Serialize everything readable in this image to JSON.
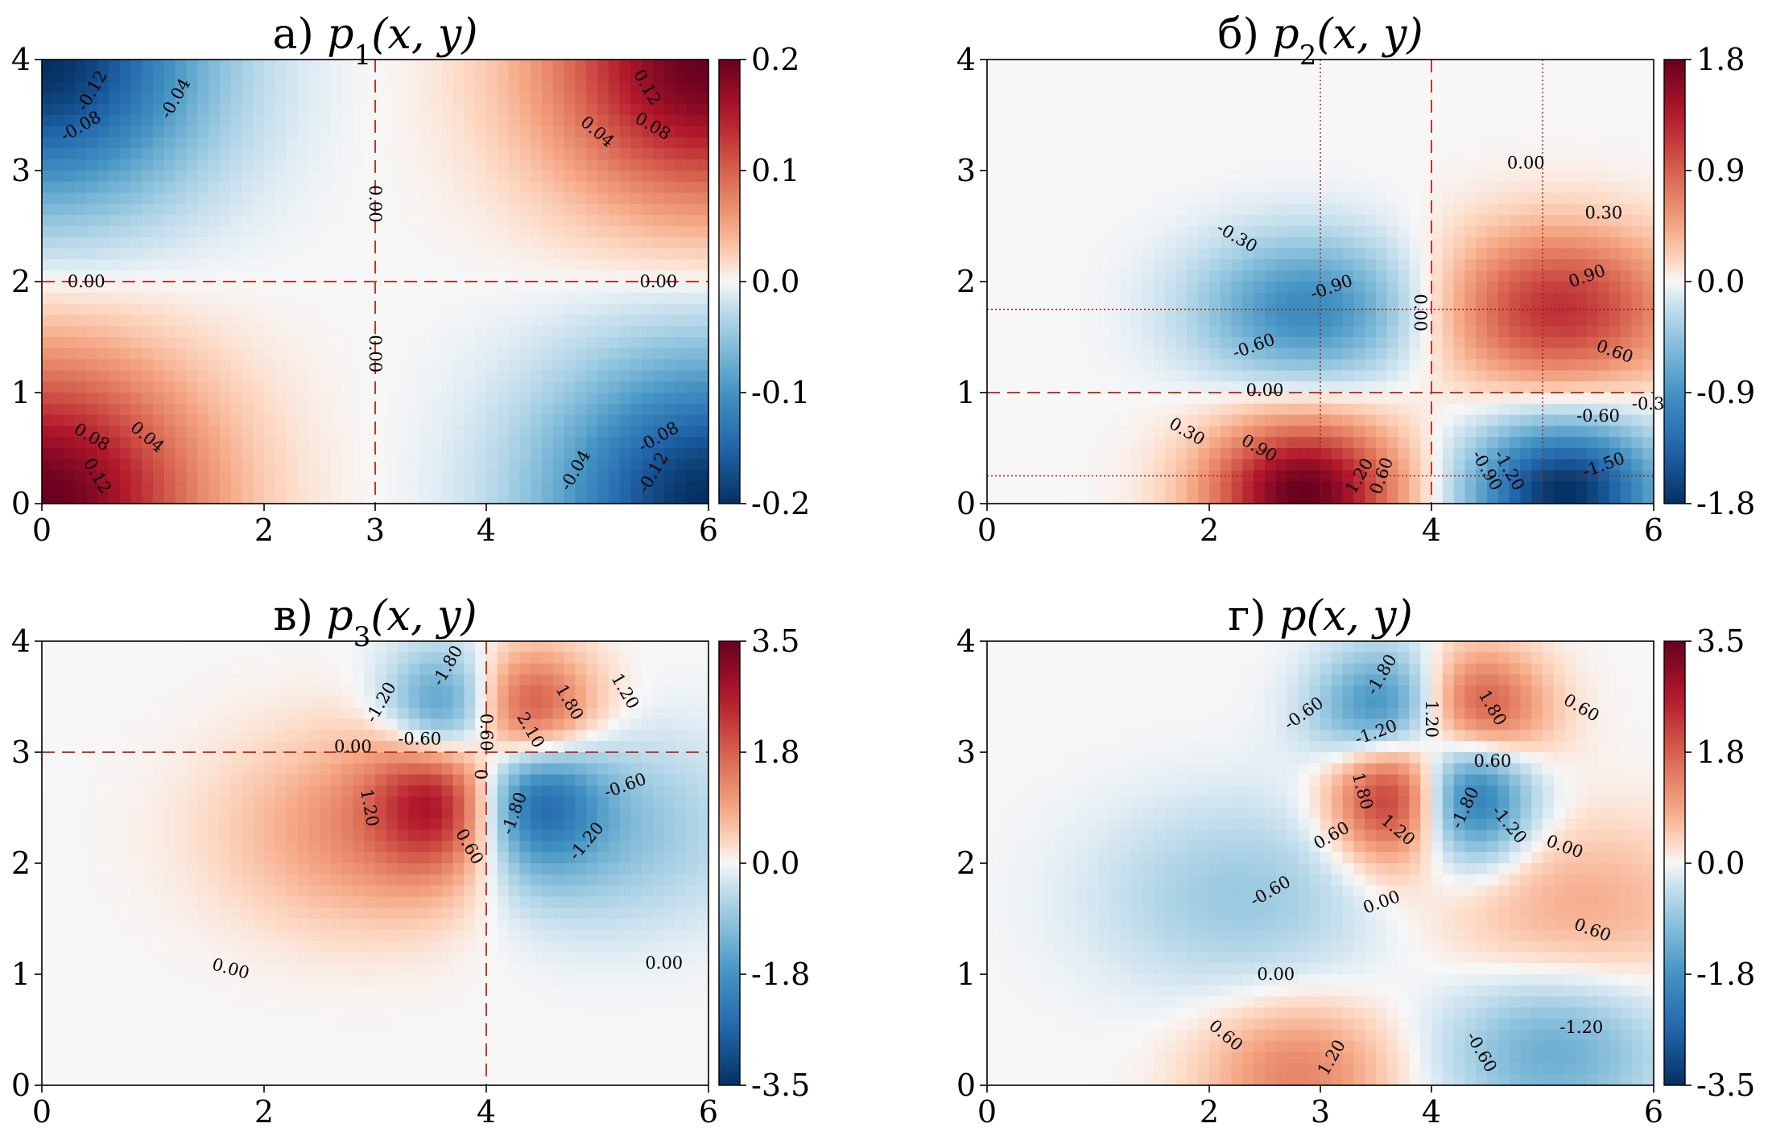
{
  "chart_data": [
    {
      "type": "heatmap",
      "panel_letter": "а)",
      "title": "p1(x, y)",
      "title_sym": "p",
      "title_sub": "1",
      "title_args": "(x, y)",
      "xlim": [
        0,
        6
      ],
      "ylim": [
        0,
        4
      ],
      "xticks": [
        0,
        2,
        3,
        4,
        6
      ],
      "yticks": [
        0,
        1,
        2,
        3,
        4
      ],
      "colorbar": {
        "min": -0.2,
        "max": 0.2,
        "ticks": [
          "-0.2",
          "-0.1",
          "0.0",
          "0.1",
          "0.2"
        ]
      },
      "colormap": "RdBu_r",
      "amp": 0.2,
      "blobs": [
        {
          "x": 0.0,
          "y": 0.0,
          "amp": 0.2,
          "sx": 1.0,
          "sy": 0.9
        },
        {
          "x": 6.0,
          "y": 4.0,
          "amp": 0.2,
          "sx": 1.0,
          "sy": 0.9
        },
        {
          "x": 0.0,
          "y": 4.0,
          "amp": -0.2,
          "sx": 1.0,
          "sy": 0.9
        },
        {
          "x": 6.0,
          "y": 0.0,
          "amp": -0.2,
          "sx": 1.0,
          "sy": 0.9
        }
      ],
      "dashed_lines": [
        {
          "orient": "v",
          "value": 3
        },
        {
          "orient": "h",
          "value": 2
        }
      ],
      "dotted_lines": [],
      "contour_labels": [
        {
          "text": "-0.12",
          "x": 0.45,
          "y": 3.72,
          "rot": -60
        },
        {
          "text": "-0.08",
          "x": 0.35,
          "y": 3.4,
          "rot": -30
        },
        {
          "text": "-0.04",
          "x": 1.2,
          "y": 3.65,
          "rot": -60
        },
        {
          "text": "0.12",
          "x": 5.45,
          "y": 3.75,
          "rot": 60
        },
        {
          "text": "0.08",
          "x": 5.5,
          "y": 3.4,
          "rot": 30
        },
        {
          "text": "0.04",
          "x": 5.0,
          "y": 3.35,
          "rot": 40
        },
        {
          "text": "0.08",
          "x": 0.45,
          "y": 0.6,
          "rot": 30
        },
        {
          "text": "0.12",
          "x": 0.5,
          "y": 0.25,
          "rot": 60
        },
        {
          "text": "0.04",
          "x": 0.95,
          "y": 0.6,
          "rot": 40
        },
        {
          "text": "-0.08",
          "x": 5.55,
          "y": 0.6,
          "rot": -30
        },
        {
          "text": "-0.12",
          "x": 5.5,
          "y": 0.28,
          "rot": -60
        },
        {
          "text": "-0.04",
          "x": 4.8,
          "y": 0.3,
          "rot": -60
        },
        {
          "text": "0.00",
          "x": 0.4,
          "y": 2.0,
          "rot": 0
        },
        {
          "text": "0.00",
          "x": 5.55,
          "y": 2.0,
          "rot": 0
        },
        {
          "text": "0.00",
          "x": 3.0,
          "y": 2.7,
          "rot": 90
        },
        {
          "text": "0.00",
          "x": 3.0,
          "y": 1.35,
          "rot": 90
        }
      ]
    },
    {
      "type": "heatmap",
      "panel_letter": "б)",
      "title": "p2(x, y)",
      "title_sym": "p",
      "title_sub": "2",
      "title_args": "(x, y)",
      "xlim": [
        0,
        6
      ],
      "ylim": [
        0,
        4
      ],
      "xticks": [
        0,
        2,
        4,
        6
      ],
      "yticks": [
        0,
        1,
        2,
        3,
        4
      ],
      "colorbar": {
        "min": -1.8,
        "max": 1.8,
        "ticks": [
          "-1.8",
          "-0.9",
          "0.0",
          "0.9",
          "1.8"
        ]
      },
      "colormap": "RdBu_r",
      "amp": 1.8,
      "blobs": [
        {
          "x": 2.9,
          "y": 1.75,
          "amp": -1.0,
          "sx": 0.7,
          "sy": 0.45
        },
        {
          "x": 5.15,
          "y": 1.75,
          "amp": 1.2,
          "sx": 0.75,
          "sy": 0.5
        },
        {
          "x": 2.85,
          "y": 0.1,
          "amp": 1.8,
          "sx": 0.6,
          "sy": 0.45
        },
        {
          "x": 5.2,
          "y": 0.1,
          "amp": -1.8,
          "sx": 0.6,
          "sy": 0.45
        }
      ],
      "dashed_lines": [
        {
          "orient": "v",
          "value": 4
        },
        {
          "orient": "h",
          "value": 1
        }
      ],
      "dotted_lines": [
        {
          "orient": "v",
          "value": 3
        },
        {
          "orient": "v",
          "value": 5
        },
        {
          "orient": "h",
          "value": 1.75
        },
        {
          "orient": "h",
          "value": 0.25
        }
      ],
      "contour_labels": [
        {
          "text": "0.00",
          "x": 4.85,
          "y": 3.07,
          "rot": 0
        },
        {
          "text": "0.30",
          "x": 5.55,
          "y": 2.62,
          "rot": 0
        },
        {
          "text": "-0.30",
          "x": 2.25,
          "y": 2.4,
          "rot": 30
        },
        {
          "text": "-0.90",
          "x": 3.1,
          "y": 1.95,
          "rot": -20
        },
        {
          "text": "-0.60",
          "x": 2.4,
          "y": 1.42,
          "rot": -20
        },
        {
          "text": "0.90",
          "x": 5.4,
          "y": 2.05,
          "rot": -20
        },
        {
          "text": "0.60",
          "x": 5.65,
          "y": 1.37,
          "rot": 20
        },
        {
          "text": "0.00",
          "x": 3.9,
          "y": 1.72,
          "rot": 90
        },
        {
          "text": "0.00",
          "x": 2.5,
          "y": 1.02,
          "rot": 0
        },
        {
          "text": "0.30",
          "x": 1.8,
          "y": 0.65,
          "rot": 30
        },
        {
          "text": "0.90",
          "x": 2.45,
          "y": 0.5,
          "rot": 30
        },
        {
          "text": "1.20",
          "x": 3.35,
          "y": 0.25,
          "rot": -60
        },
        {
          "text": "0.60",
          "x": 3.55,
          "y": 0.25,
          "rot": -70
        },
        {
          "text": "-0.60",
          "x": 5.5,
          "y": 0.79,
          "rot": 0
        },
        {
          "text": "-0.90",
          "x": 4.5,
          "y": 0.3,
          "rot": 60
        },
        {
          "text": "-1.20",
          "x": 4.7,
          "y": 0.3,
          "rot": 60
        },
        {
          "text": "-1.50",
          "x": 5.55,
          "y": 0.35,
          "rot": -20
        },
        {
          "text": "-0.3",
          "x": 5.95,
          "y": 0.9,
          "rot": 0
        }
      ]
    },
    {
      "type": "heatmap",
      "panel_letter": "в)",
      "title": "p3(x, y)",
      "title_sym": "p",
      "title_sub": "3",
      "title_args": "(x, y)",
      "xlim": [
        0,
        6
      ],
      "ylim": [
        0,
        4
      ],
      "xticks": [
        0,
        2,
        4,
        6
      ],
      "yticks": [
        0,
        1,
        2,
        3,
        4
      ],
      "colorbar": {
        "min": -3.5,
        "max": 3.5,
        "ticks": [
          "-3.5",
          "-1.8",
          "0.0",
          "1.8",
          "3.5"
        ]
      },
      "colormap": "RdBu_r",
      "amp": 3.5,
      "blobs": [
        {
          "x": 3.7,
          "y": 3.3,
          "amp": -3.5,
          "sx": 0.4,
          "sy": 0.4
        },
        {
          "x": 4.3,
          "y": 3.3,
          "amp": 3.5,
          "sx": 0.45,
          "sy": 0.4
        },
        {
          "x": 3.7,
          "y": 2.7,
          "amp": 3.5,
          "sx": 0.45,
          "sy": 0.5
        },
        {
          "x": 4.3,
          "y": 2.7,
          "amp": -3.5,
          "sx": 0.45,
          "sy": 0.5
        },
        {
          "x": 3.0,
          "y": 2.3,
          "amp": 1.2,
          "sx": 0.9,
          "sy": 0.6
        },
        {
          "x": 5.0,
          "y": 2.3,
          "amp": -1.0,
          "sx": 0.9,
          "sy": 0.6
        }
      ],
      "dashed_lines": [
        {
          "orient": "v",
          "value": 4
        },
        {
          "orient": "h",
          "value": 3
        }
      ],
      "dotted_lines": [],
      "contour_labels": [
        {
          "text": "-1.80",
          "x": 3.65,
          "y": 3.78,
          "rot": -60
        },
        {
          "text": "-1.20",
          "x": 3.05,
          "y": 3.45,
          "rot": -60
        },
        {
          "text": "-0.60",
          "x": 3.4,
          "y": 3.12,
          "rot": 0
        },
        {
          "text": "0.60",
          "x": 4.0,
          "y": 3.18,
          "rot": 90
        },
        {
          "text": "2.10",
          "x": 4.4,
          "y": 3.2,
          "rot": 60
        },
        {
          "text": "1.80",
          "x": 4.75,
          "y": 3.45,
          "rot": 60
        },
        {
          "text": "1.20",
          "x": 5.25,
          "y": 3.55,
          "rot": 60
        },
        {
          "text": "0.00",
          "x": 2.8,
          "y": 3.05,
          "rot": 0
        },
        {
          "text": "1.20",
          "x": 2.95,
          "y": 2.5,
          "rot": 80
        },
        {
          "text": "0.60",
          "x": 3.85,
          "y": 2.15,
          "rot": 60
        },
        {
          "text": "-1.80",
          "x": 4.25,
          "y": 2.45,
          "rot": -70
        },
        {
          "text": "-0.60",
          "x": 5.25,
          "y": 2.7,
          "rot": -20
        },
        {
          "text": "-1.20",
          "x": 4.9,
          "y": 2.2,
          "rot": -50
        },
        {
          "text": "0.00",
          "x": 1.7,
          "y": 1.05,
          "rot": 15
        },
        {
          "text": "0.00",
          "x": 5.6,
          "y": 1.1,
          "rot": 0
        },
        {
          "text": "0",
          "x": 3.95,
          "y": 2.8,
          "rot": 90
        }
      ]
    },
    {
      "type": "heatmap",
      "panel_letter": "г)",
      "title": "p(x, y)",
      "title_sym": "p",
      "title_sub": "",
      "title_args": "(x, y)",
      "xlim": [
        0,
        6
      ],
      "ylim": [
        0,
        4
      ],
      "xticks": [
        0,
        2,
        3,
        4,
        6
      ],
      "yticks": [
        0,
        1,
        2,
        3,
        4
      ],
      "colorbar": {
        "min": -3.5,
        "max": 3.5,
        "ticks": [
          "-3.5",
          "-1.8",
          "0.0",
          "1.8",
          "3.5"
        ]
      },
      "colormap": "RdBu_r",
      "amp": 3.5,
      "blobs": [
        {
          "x": 3.7,
          "y": 3.3,
          "amp": -3.5,
          "sx": 0.45,
          "sy": 0.4
        },
        {
          "x": 4.3,
          "y": 3.3,
          "amp": 3.5,
          "sx": 0.45,
          "sy": 0.4
        },
        {
          "x": 3.7,
          "y": 2.7,
          "amp": 3.5,
          "sx": 0.4,
          "sy": 0.45
        },
        {
          "x": 4.3,
          "y": 2.7,
          "amp": -3.5,
          "sx": 0.4,
          "sy": 0.45
        },
        {
          "x": 2.3,
          "y": 1.7,
          "amp": -0.8,
          "sx": 0.9,
          "sy": 0.6
        },
        {
          "x": 5.3,
          "y": 1.6,
          "amp": 0.8,
          "sx": 0.9,
          "sy": 0.55
        },
        {
          "x": 2.8,
          "y": 0.1,
          "amp": 1.3,
          "sx": 0.6,
          "sy": 0.45
        },
        {
          "x": 5.1,
          "y": 0.3,
          "amp": -1.3,
          "sx": 0.7,
          "sy": 0.5
        }
      ],
      "dashed_lines": [],
      "dotted_lines": [],
      "contour_labels": [
        {
          "text": "-1.80",
          "x": 3.55,
          "y": 3.7,
          "rot": -60
        },
        {
          "text": "-0.60",
          "x": 2.85,
          "y": 3.35,
          "rot": -35
        },
        {
          "text": "-1.20",
          "x": 3.5,
          "y": 3.18,
          "rot": -20
        },
        {
          "text": "1.20",
          "x": 4.0,
          "y": 3.3,
          "rot": 90
        },
        {
          "text": "1.80",
          "x": 4.55,
          "y": 3.4,
          "rot": 60
        },
        {
          "text": "0.60",
          "x": 5.35,
          "y": 3.4,
          "rot": 30
        },
        {
          "text": "0.60",
          "x": 4.55,
          "y": 2.92,
          "rot": 0
        },
        {
          "text": "1.80",
          "x": 3.38,
          "y": 2.65,
          "rot": 75
        },
        {
          "text": "1.20",
          "x": 3.7,
          "y": 2.3,
          "rot": 40
        },
        {
          "text": "0.60",
          "x": 3.1,
          "y": 2.25,
          "rot": -30
        },
        {
          "text": "-1.80",
          "x": 4.3,
          "y": 2.5,
          "rot": -65
        },
        {
          "text": "-1.20",
          "x": 4.7,
          "y": 2.35,
          "rot": 50
        },
        {
          "text": "0.00",
          "x": 5.2,
          "y": 2.15,
          "rot": 20
        },
        {
          "text": "-0.60",
          "x": 2.55,
          "y": 1.75,
          "rot": -30
        },
        {
          "text": "0.00",
          "x": 3.55,
          "y": 1.65,
          "rot": -20
        },
        {
          "text": "0.60",
          "x": 5.45,
          "y": 1.4,
          "rot": 20
        },
        {
          "text": "0.00",
          "x": 2.6,
          "y": 1.0,
          "rot": 0
        },
        {
          "text": "0.60",
          "x": 2.15,
          "y": 0.45,
          "rot": 40
        },
        {
          "text": "1.20",
          "x": 3.1,
          "y": 0.25,
          "rot": -60
        },
        {
          "text": "-0.60",
          "x": 4.45,
          "y": 0.3,
          "rot": 60
        },
        {
          "text": "-1.20",
          "x": 5.35,
          "y": 0.52,
          "rot": 0
        }
      ]
    }
  ]
}
